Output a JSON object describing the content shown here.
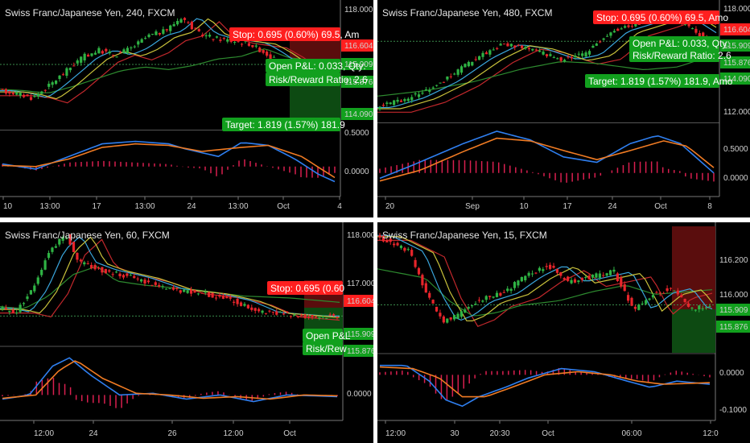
{
  "colors": {
    "background": "#000000",
    "bull": "#2fb344",
    "bear": "#e8252b",
    "stop_red": "#ff1f1f",
    "target_green": "#12a01e",
    "sma_red": "#c2282c",
    "sma_green": "#2d8a2f",
    "ema_blue": "#3aa6dd",
    "ema_orange": "#e07b22",
    "ema_yellow": "#c9c23b",
    "macd_blue": "#2f7ff0",
    "macd_orange": "#f07b23",
    "hist": "#d91f4f",
    "dotted": "#3a8a4a"
  },
  "chart_data": [
    {
      "type": "candlestick",
      "title": "Swiss Franc/Japanese Yen, 240, FXCM",
      "x_tick_labels": [
        "10",
        "13:00",
        "17",
        "13:00",
        "24",
        "13:00",
        "Oct",
        "4"
      ],
      "price_ticks": [
        "118.000",
        "116.604",
        "115.909",
        "115.876",
        "114.090"
      ],
      "ylim": [
        113.2,
        118.4
      ],
      "macd_ticks": [
        "0.5000",
        "0.0000"
      ],
      "macd_ylim": [
        -0.5,
        0.7
      ],
      "position": {
        "stop": "Stop: 0.695 (0.60%) 69.5, Am",
        "pnl": "Open P&L: 0.033, Qty:",
        "rr": "Risk/Reward Ratio: 2.6",
        "target": "Target: 1.819 (1.57%) 181.9"
      },
      "price_path": [
        [
          0,
          114.8
        ],
        [
          0.05,
          114.7
        ],
        [
          0.1,
          114.5
        ],
        [
          0.15,
          115.0
        ],
        [
          0.2,
          115.6
        ],
        [
          0.25,
          116.2
        ],
        [
          0.3,
          116.5
        ],
        [
          0.35,
          116.3
        ],
        [
          0.4,
          116.6
        ],
        [
          0.45,
          117.1
        ],
        [
          0.5,
          117.3
        ],
        [
          0.55,
          117.9
        ],
        [
          0.6,
          117.2
        ],
        [
          0.65,
          117.0
        ],
        [
          0.7,
          116.9
        ],
        [
          0.75,
          116.8
        ],
        [
          0.8,
          116.4
        ],
        [
          0.85,
          115.9
        ],
        [
          0.9,
          115.9
        ],
        [
          0.95,
          115.95
        ],
        [
          1,
          115.9
        ]
      ],
      "macd_path": [
        [
          0,
          0.05
        ],
        [
          0.1,
          -0.05
        ],
        [
          0.2,
          0.2
        ],
        [
          0.3,
          0.45
        ],
        [
          0.4,
          0.5
        ],
        [
          0.5,
          0.45
        ],
        [
          0.55,
          0.35
        ],
        [
          0.65,
          0.2
        ],
        [
          0.72,
          0.48
        ],
        [
          0.8,
          0.42
        ],
        [
          0.88,
          0.15
        ],
        [
          0.95,
          -0.15
        ],
        [
          1,
          -0.3
        ]
      ],
      "signal_path": [
        [
          0,
          0.02
        ],
        [
          0.1,
          0.0
        ],
        [
          0.2,
          0.15
        ],
        [
          0.3,
          0.38
        ],
        [
          0.4,
          0.45
        ],
        [
          0.5,
          0.42
        ],
        [
          0.6,
          0.3
        ],
        [
          0.72,
          0.38
        ],
        [
          0.8,
          0.42
        ],
        [
          0.9,
          0.2
        ],
        [
          1,
          -0.22
        ]
      ]
    },
    {
      "type": "candlestick",
      "title": "Swiss Franc/Japanese Yen, 480, FXCM",
      "x_tick_labels": [
        "20",
        "Sep",
        "10",
        "17",
        "24",
        "Oct",
        "8"
      ],
      "price_ticks": [
        "118.000",
        "116.604",
        "115.909",
        "115.876",
        "114.090",
        "112.000"
      ],
      "ylim": [
        111.2,
        118.2
      ],
      "macd_ticks": [
        "0.5000",
        "0.0000"
      ],
      "macd_ylim": [
        -0.35,
        0.9
      ],
      "position": {
        "stop": "Stop: 0.695 (0.60%) 69.5, Amo",
        "pnl": "Open P&L: 0.033, Qty:",
        "rr": "Risk/Reward Ratio: 2.6",
        "target": "Target: 1.819 (1.57%) 181.9, Amo"
      },
      "price_path": [
        [
          0,
          112.0
        ],
        [
          0.1,
          112.6
        ],
        [
          0.2,
          113.6
        ],
        [
          0.3,
          115.0
        ],
        [
          0.38,
          115.8
        ],
        [
          0.45,
          115.6
        ],
        [
          0.55,
          114.9
        ],
        [
          0.62,
          115.2
        ],
        [
          0.7,
          116.6
        ],
        [
          0.78,
          117.1
        ],
        [
          0.85,
          117.6
        ],
        [
          0.9,
          117.3
        ],
        [
          1,
          116.0
        ]
      ],
      "macd_path": [
        [
          0,
          -0.1
        ],
        [
          0.1,
          0.15
        ],
        [
          0.25,
          0.55
        ],
        [
          0.35,
          0.78
        ],
        [
          0.45,
          0.62
        ],
        [
          0.55,
          0.3
        ],
        [
          0.65,
          0.2
        ],
        [
          0.75,
          0.55
        ],
        [
          0.83,
          0.7
        ],
        [
          0.9,
          0.55
        ],
        [
          1,
          0.0
        ]
      ],
      "signal_path": [
        [
          0,
          -0.15
        ],
        [
          0.12,
          0.05
        ],
        [
          0.25,
          0.4
        ],
        [
          0.35,
          0.65
        ],
        [
          0.45,
          0.6
        ],
        [
          0.55,
          0.42
        ],
        [
          0.65,
          0.25
        ],
        [
          0.75,
          0.42
        ],
        [
          0.85,
          0.6
        ],
        [
          0.92,
          0.5
        ],
        [
          1,
          0.1
        ]
      ]
    },
    {
      "type": "candlestick",
      "title": "Swiss Franc/Japanese Yen, 60, FXCM",
      "x_tick_labels": [
        "12:00",
        "24",
        "26",
        "12:00",
        "Oct"
      ],
      "price_ticks": [
        "118.000",
        "117.000",
        "116.604",
        "115.909",
        "115.876"
      ],
      "ylim": [
        115.2,
        118.2
      ],
      "macd_ticks": [
        "0.0000"
      ],
      "macd_ylim": [
        -0.25,
        0.55
      ],
      "position": {
        "stop": "Stop: 0.695 (0.60",
        "pnl": "Open P&L",
        "rr": "Risk/Rew"
      },
      "price_path": [
        [
          0,
          116.1
        ],
        [
          0.05,
          116.0
        ],
        [
          0.1,
          116.6
        ],
        [
          0.15,
          117.6
        ],
        [
          0.2,
          118.0
        ],
        [
          0.24,
          117.3
        ],
        [
          0.3,
          117.1
        ],
        [
          0.4,
          116.9
        ],
        [
          0.5,
          116.6
        ],
        [
          0.6,
          116.5
        ],
        [
          0.7,
          116.3
        ],
        [
          0.78,
          116.0
        ],
        [
          0.85,
          115.95
        ],
        [
          0.92,
          115.9
        ],
        [
          1,
          115.9
        ]
      ],
      "macd_path": [
        [
          0,
          -0.05
        ],
        [
          0.08,
          0.0
        ],
        [
          0.15,
          0.35
        ],
        [
          0.2,
          0.45
        ],
        [
          0.26,
          0.25
        ],
        [
          0.35,
          0.0
        ],
        [
          0.45,
          0.02
        ],
        [
          0.55,
          -0.05
        ],
        [
          0.65,
          0.0
        ],
        [
          0.75,
          -0.08
        ],
        [
          0.85,
          0.0
        ],
        [
          1,
          -0.02
        ]
      ],
      "signal_path": [
        [
          0,
          -0.04
        ],
        [
          0.1,
          0.0
        ],
        [
          0.17,
          0.3
        ],
        [
          0.22,
          0.42
        ],
        [
          0.3,
          0.2
        ],
        [
          0.4,
          0.02
        ],
        [
          0.5,
          0.0
        ],
        [
          0.6,
          -0.04
        ],
        [
          0.7,
          -0.02
        ],
        [
          0.8,
          -0.05
        ],
        [
          0.9,
          0.0
        ],
        [
          1,
          -0.01
        ]
      ]
    },
    {
      "type": "candlestick",
      "title": "Swiss Franc/Japanese Yen, 15, FXCM",
      "x_tick_labels": [
        "12:00",
        "30",
        "20:30",
        "Oct",
        "06:00",
        "12:0"
      ],
      "price_ticks": [
        "116.200",
        "116.000",
        "115.909",
        "115.876"
      ],
      "ylim": [
        115.6,
        116.35
      ],
      "macd_ticks": [
        "0.0000",
        "-0.1000"
      ],
      "macd_ylim": [
        -0.13,
        0.06
      ],
      "price_path": [
        [
          0,
          116.3
        ],
        [
          0.05,
          116.25
        ],
        [
          0.1,
          116.2
        ],
        [
          0.15,
          115.95
        ],
        [
          0.2,
          115.78
        ],
        [
          0.25,
          115.82
        ],
        [
          0.3,
          115.9
        ],
        [
          0.38,
          115.95
        ],
        [
          0.45,
          116.05
        ],
        [
          0.52,
          116.12
        ],
        [
          0.58,
          116.02
        ],
        [
          0.65,
          116.05
        ],
        [
          0.72,
          116.08
        ],
        [
          0.78,
          115.85
        ],
        [
          0.84,
          115.95
        ],
        [
          0.9,
          115.98
        ],
        [
          0.95,
          115.85
        ],
        [
          1,
          115.88
        ]
      ],
      "macd_path": [
        [
          0,
          0.03
        ],
        [
          0.08,
          0.03
        ],
        [
          0.15,
          -0.02
        ],
        [
          0.2,
          -0.08
        ],
        [
          0.25,
          -0.1
        ],
        [
          0.3,
          -0.07
        ],
        [
          0.38,
          -0.04
        ],
        [
          0.45,
          -0.01
        ],
        [
          0.55,
          0.02
        ],
        [
          0.65,
          0.01
        ],
        [
          0.75,
          -0.02
        ],
        [
          0.82,
          -0.04
        ],
        [
          0.9,
          -0.02
        ],
        [
          1,
          -0.03
        ]
      ],
      "signal_path": [
        [
          0,
          0.025
        ],
        [
          0.1,
          0.02
        ],
        [
          0.18,
          -0.01
        ],
        [
          0.25,
          -0.07
        ],
        [
          0.32,
          -0.07
        ],
        [
          0.4,
          -0.04
        ],
        [
          0.5,
          0.0
        ],
        [
          0.6,
          0.01
        ],
        [
          0.7,
          0.0
        ],
        [
          0.78,
          -0.02
        ],
        [
          0.86,
          -0.03
        ],
        [
          1,
          -0.025
        ]
      ]
    }
  ]
}
